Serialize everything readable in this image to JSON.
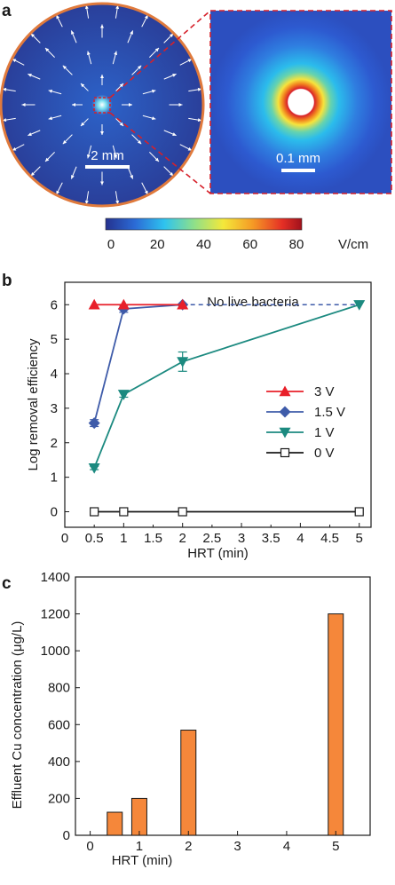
{
  "panel_a": {
    "letter": "a",
    "scale_left": "2 mm",
    "scale_right": "0.1 mm",
    "colorbar": {
      "ticks": [
        "0",
        "20",
        "40",
        "60",
        "80"
      ],
      "unit": "V/cm",
      "range": [
        0,
        80
      ]
    }
  },
  "chart_data": [
    {
      "panel": "b",
      "type": "line",
      "xlabel": "HRT (min)",
      "ylabel": "Log removal efficiency",
      "annotation": "No live bacteria",
      "xlim": [
        0,
        5.2
      ],
      "ylim": [
        -0.45,
        6.65
      ],
      "xticks": [
        0,
        0.5,
        1,
        1.5,
        2,
        2.5,
        3,
        3.5,
        4,
        4.5,
        5
      ],
      "yticks": [
        0,
        1,
        2,
        3,
        4,
        5,
        6
      ],
      "legend_position": "right",
      "series": [
        {
          "name": "3 V",
          "color": "#e8202a",
          "marker": "triangle-up",
          "x": [
            0.5,
            1,
            2
          ],
          "y": [
            6,
            6,
            6
          ],
          "err": [
            0,
            0,
            0
          ]
        },
        {
          "name": "1.5 V",
          "color": "#3e5ba9",
          "marker": "diamond",
          "x": [
            0.5,
            1,
            2
          ],
          "y": [
            2.57,
            5.88,
            6.0
          ],
          "err": [
            0.1,
            0.1,
            0
          ]
        },
        {
          "name": "1 V",
          "color": "#1c8a80",
          "marker": "triangle-down",
          "x": [
            0.5,
            1,
            2,
            5
          ],
          "y": [
            1.27,
            3.4,
            4.35,
            6.0
          ],
          "err": [
            0.05,
            0.08,
            0.28,
            0
          ]
        },
        {
          "name": "0 V",
          "color": "#1a1a1a",
          "marker": "square-open",
          "x": [
            0.5,
            1,
            2,
            5
          ],
          "y": [
            0,
            0,
            0,
            0
          ],
          "err": [
            0,
            0,
            0,
            0
          ]
        }
      ],
      "dashed_segment": {
        "x": [
          2,
          5
        ],
        "y": [
          6,
          6
        ],
        "color": "#3e5ba9"
      }
    },
    {
      "panel": "c",
      "type": "bar",
      "xlabel": "HRT (min)",
      "ylabel": "Effluent Cu concentration (μg/L)",
      "xlim": [
        -0.3,
        5.7
      ],
      "ylim": [
        0,
        1400
      ],
      "xticks": [
        0,
        1,
        2,
        3,
        4,
        5
      ],
      "yticks": [
        0,
        200,
        400,
        600,
        800,
        1000,
        1200,
        1400
      ],
      "bar_color": "#f5873a",
      "x": [
        0.5,
        1,
        2,
        5
      ],
      "values": [
        125,
        200,
        570,
        1200
      ]
    }
  ],
  "panel_letters": {
    "b": "b",
    "c": "c"
  }
}
